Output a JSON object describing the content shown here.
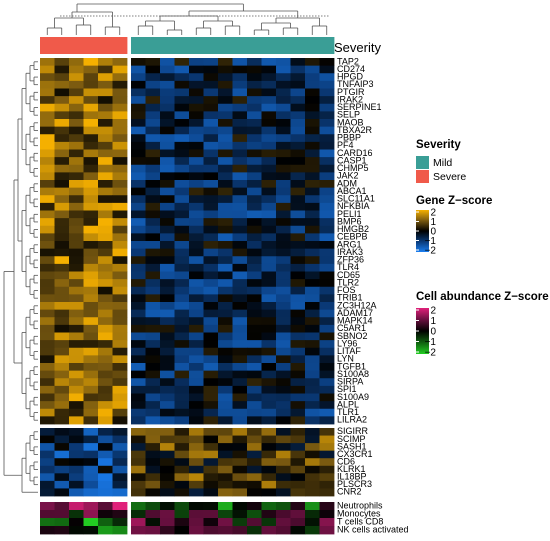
{
  "chart_data": {
    "type": "heatmap",
    "title": "",
    "column_annotation": {
      "name": "Severity",
      "groups": [
        {
          "label": "Severe",
          "count": 6,
          "color": "#f05a4a"
        },
        {
          "label": "Mild",
          "count": 14,
          "color": "#3a9e96"
        }
      ]
    },
    "gene_rows_block1": [
      "TAP2",
      "CD274",
      "HPGD",
      "TNFAIP3",
      "PTGIR",
      "IRAK2",
      "SERPINE1",
      "SELP",
      "MAOB",
      "TBXA2R",
      "PBBP",
      "PF4",
      "CARD16",
      "CASP1",
      "CHMP5",
      "JAK2",
      "ADM",
      "ABCA1",
      "SLC11A1",
      "NFKBIA",
      "PELI1",
      "BMP6",
      "HMGB2",
      "CEBPB",
      "ARG1",
      "IRAK3",
      "ZFP36",
      "TLR4",
      "CD65",
      "TLR2",
      "FOS",
      "TRIB1",
      "ZC3H12A",
      "ADAM17",
      "MAPK14",
      "C5AR1",
      "SBNO2",
      "LY96",
      "LITAF",
      "LYN",
      "TGFB1",
      "S100A8",
      "SIRPA",
      "SPI1",
      "S100A9",
      "ALPL",
      "TLR1",
      "LILRA2"
    ],
    "gene_rows_block2": [
      "SIGIRR",
      "SCIMP",
      "SASH1",
      "CX3CR1",
      "CD6",
      "KLRK1",
      "IL18BP",
      "PLSCR3",
      "CNR2"
    ],
    "cell_rows": [
      "Neutrophils",
      "Monocytes",
      "T cells CD8",
      "NK cells activated"
    ],
    "legends": {
      "severity": {
        "title": "Severity",
        "items": [
          {
            "label": "Mild",
            "color": "#3a9e96"
          },
          {
            "label": "Severe",
            "color": "#f05a4a"
          }
        ]
      },
      "gene": {
        "title": "Gene Z−score",
        "ticks": [
          "2",
          "1",
          "0",
          "−1",
          "−2"
        ],
        "colors": [
          "#f5b000",
          "#7a5a10",
          "#000000",
          "#0a3a78",
          "#1a7ef0"
        ]
      },
      "cell": {
        "title": "Cell abundance Z−score",
        "ticks": [
          "2",
          "1",
          "0",
          "−1",
          "−2"
        ],
        "colors": [
          "#e0207a",
          "#6a1040",
          "#000000",
          "#106010",
          "#22cc22"
        ]
      }
    },
    "zlim": [
      -2,
      2
    ]
  }
}
